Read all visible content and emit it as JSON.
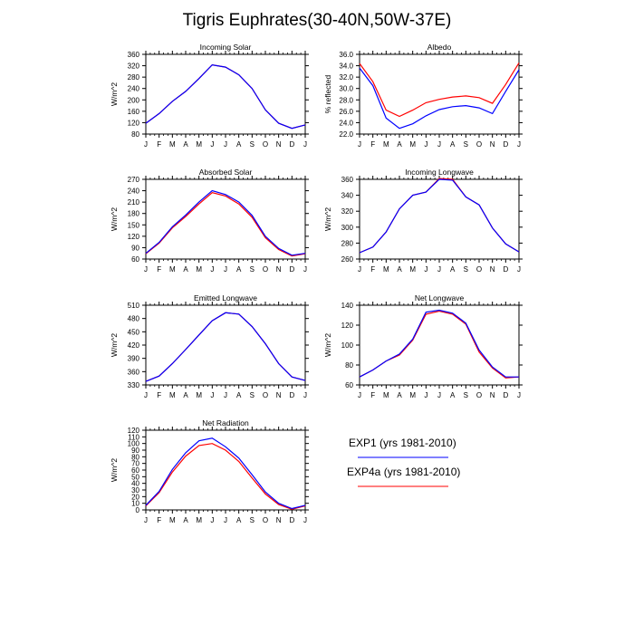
{
  "title": "Tigris Euphrates(30-40N,50W-37E)",
  "months": [
    "J",
    "F",
    "M",
    "A",
    "M",
    "J",
    "J",
    "A",
    "S",
    "O",
    "N",
    "D",
    "J"
  ],
  "colors": {
    "EXP1": "#0000ff",
    "EXP4a": "#ff0000"
  },
  "legend": [
    {
      "label": "EXP1 (yrs 1981-2010)",
      "color": "#0000ff"
    },
    {
      "label": "EXP4a (yrs 1981-2010)",
      "color": "#ff0000"
    }
  ],
  "chart_data": [
    {
      "type": "line",
      "title": "Incoming Solar",
      "ylabel": "W/m^2",
      "ylim": [
        80,
        360
      ],
      "yticks": [
        80,
        120,
        160,
        200,
        240,
        280,
        320,
        360
      ],
      "series": [
        {
          "name": "EXP1",
          "values": [
            118,
            152,
            195,
            230,
            275,
            323,
            315,
            288,
            240,
            165,
            118,
            100,
            112
          ]
        },
        {
          "name": "EXP4a",
          "values": [
            118,
            152,
            195,
            230,
            275,
            323,
            315,
            288,
            240,
            165,
            118,
            100,
            112
          ]
        }
      ]
    },
    {
      "type": "line",
      "title": "Albedo",
      "ylabel": "% reflected",
      "ylim": [
        22,
        36
      ],
      "yticks": [
        22.0,
        24.0,
        26.0,
        28.0,
        30.0,
        32.0,
        34.0,
        36.0
      ],
      "series": [
        {
          "name": "EXP1",
          "values": [
            33.6,
            30.5,
            24.8,
            23.0,
            23.8,
            25.2,
            26.3,
            26.8,
            27.0,
            26.6,
            25.6,
            29.5,
            33.3
          ]
        },
        {
          "name": "EXP4a",
          "values": [
            34.4,
            31.2,
            26.2,
            25.1,
            26.2,
            27.5,
            28.1,
            28.5,
            28.7,
            28.4,
            27.4,
            30.7,
            34.5
          ]
        }
      ]
    },
    {
      "type": "line",
      "title": "Absorbed Solar",
      "ylabel": "W/m^2",
      "ylim": [
        60,
        270
      ],
      "yticks": [
        60,
        90,
        120,
        150,
        180,
        210,
        240,
        270
      ],
      "series": [
        {
          "name": "EXP1",
          "values": [
            75,
            104,
            145,
            176,
            210,
            240,
            230,
            210,
            175,
            120,
            88,
            70,
            75
          ]
        },
        {
          "name": "EXP4a",
          "values": [
            74,
            102,
            142,
            172,
            205,
            235,
            226,
            205,
            170,
            116,
            85,
            68,
            74
          ]
        }
      ]
    },
    {
      "type": "line",
      "title": "Incoming Longwave",
      "ylabel": "W/m^2",
      "ylim": [
        260,
        360
      ],
      "yticks": [
        260,
        280,
        300,
        320,
        340,
        360
      ],
      "series": [
        {
          "name": "EXP1",
          "values": [
            268,
            275,
            294,
            323,
            340,
            344,
            360,
            359,
            338,
            328,
            299,
            279,
            269
          ]
        },
        {
          "name": "EXP4a",
          "values": [
            268,
            275,
            294,
            323,
            340,
            344,
            361,
            360,
            338,
            328,
            299,
            279,
            269
          ]
        }
      ]
    },
    {
      "type": "line",
      "title": "Emitted Longwave",
      "ylabel": "W/m^2",
      "ylim": [
        330,
        510
      ],
      "yticks": [
        330,
        360,
        390,
        420,
        450,
        480,
        510
      ],
      "series": [
        {
          "name": "EXP1",
          "values": [
            338,
            350,
            378,
            410,
            443,
            475,
            493,
            490,
            462,
            423,
            378,
            348,
            340
          ]
        },
        {
          "name": "EXP4a",
          "values": [
            338,
            350,
            378,
            410,
            443,
            475,
            493,
            490,
            462,
            423,
            378,
            348,
            340
          ]
        }
      ]
    },
    {
      "type": "line",
      "title": "Net Longwave",
      "ylabel": "W/m^2",
      "ylim": [
        60,
        140
      ],
      "yticks": [
        60,
        80,
        100,
        120,
        140
      ],
      "series": [
        {
          "name": "EXP1",
          "values": [
            68,
            75,
            84,
            91,
            106,
            133,
            135,
            132,
            122,
            95,
            78,
            68,
            68
          ]
        },
        {
          "name": "EXP4a",
          "values": [
            68,
            75,
            84,
            90,
            105,
            131,
            134,
            131,
            121,
            93,
            77,
            67,
            68
          ]
        }
      ]
    },
    {
      "type": "line",
      "title": "Net Radiation",
      "ylabel": "W/m^2",
      "ylim": [
        0,
        120
      ],
      "yticks": [
        0,
        10,
        20,
        30,
        40,
        50,
        60,
        70,
        80,
        90,
        100,
        110,
        120
      ],
      "series": [
        {
          "name": "EXP1",
          "values": [
            7,
            28,
            61,
            86,
            104,
            108,
            95,
            78,
            53,
            27,
            10,
            2,
            7
          ]
        },
        {
          "name": "EXP4a",
          "values": [
            6,
            26,
            57,
            81,
            97,
            100,
            90,
            73,
            48,
            24,
            8,
            1,
            6
          ]
        }
      ]
    }
  ]
}
